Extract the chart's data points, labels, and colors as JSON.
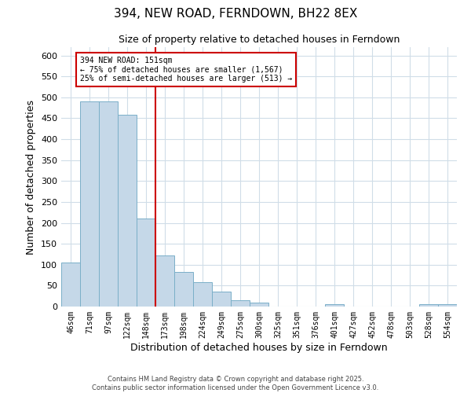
{
  "title": "394, NEW ROAD, FERNDOWN, BH22 8EX",
  "subtitle": "Size of property relative to detached houses in Ferndown",
  "xlabel": "Distribution of detached houses by size in Ferndown",
  "ylabel": "Number of detached properties",
  "bar_labels": [
    "46sqm",
    "71sqm",
    "97sqm",
    "122sqm",
    "148sqm",
    "173sqm",
    "198sqm",
    "224sqm",
    "249sqm",
    "275sqm",
    "300sqm",
    "325sqm",
    "351sqm",
    "376sqm",
    "401sqm",
    "427sqm",
    "452sqm",
    "478sqm",
    "503sqm",
    "528sqm",
    "554sqm"
  ],
  "bar_values": [
    105,
    490,
    490,
    458,
    210,
    122,
    82,
    58,
    36,
    15,
    10,
    0,
    0,
    0,
    5,
    0,
    0,
    0,
    0,
    5,
    5
  ],
  "bar_color": "#c5d8e8",
  "bar_edge_color": "#7aafc8",
  "vline_color": "#cc0000",
  "annotation_title": "394 NEW ROAD: 151sqm",
  "annotation_line1": "← 75% of detached houses are smaller (1,567)",
  "annotation_line2": "25% of semi-detached houses are larger (513) →",
  "annotation_box_color": "#cc0000",
  "ylim": [
    0,
    620
  ],
  "yticks": [
    0,
    50,
    100,
    150,
    200,
    250,
    300,
    350,
    400,
    450,
    500,
    550,
    600
  ],
  "footer_line1": "Contains HM Land Registry data © Crown copyright and database right 2025.",
  "footer_line2": "Contains public sector information licensed under the Open Government Licence v3.0.",
  "background_color": "#ffffff",
  "grid_color": "#d0dde8"
}
